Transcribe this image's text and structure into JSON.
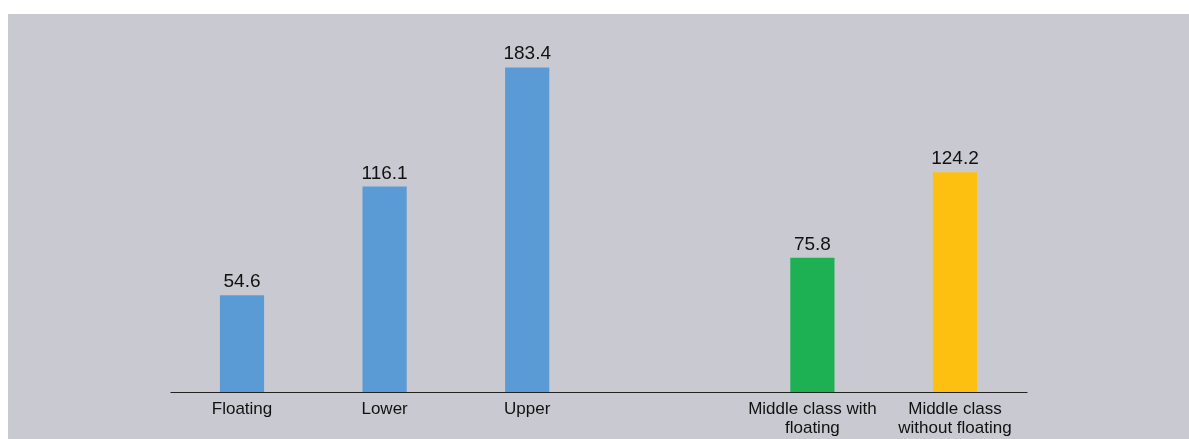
{
  "chart_data": {
    "type": "bar",
    "categories": [
      "Floating",
      "Lower",
      "Upper",
      null,
      "Middle class with floating",
      "Middle class without floating"
    ],
    "values": [
      54.6,
      116.1,
      183.4,
      null,
      75.8,
      124.2
    ],
    "colors": [
      "#5b9bd5",
      "#5b9bd5",
      "#5b9bd5",
      null,
      "#1db154",
      "#fdc010"
    ],
    "data_labels": true
  }
}
